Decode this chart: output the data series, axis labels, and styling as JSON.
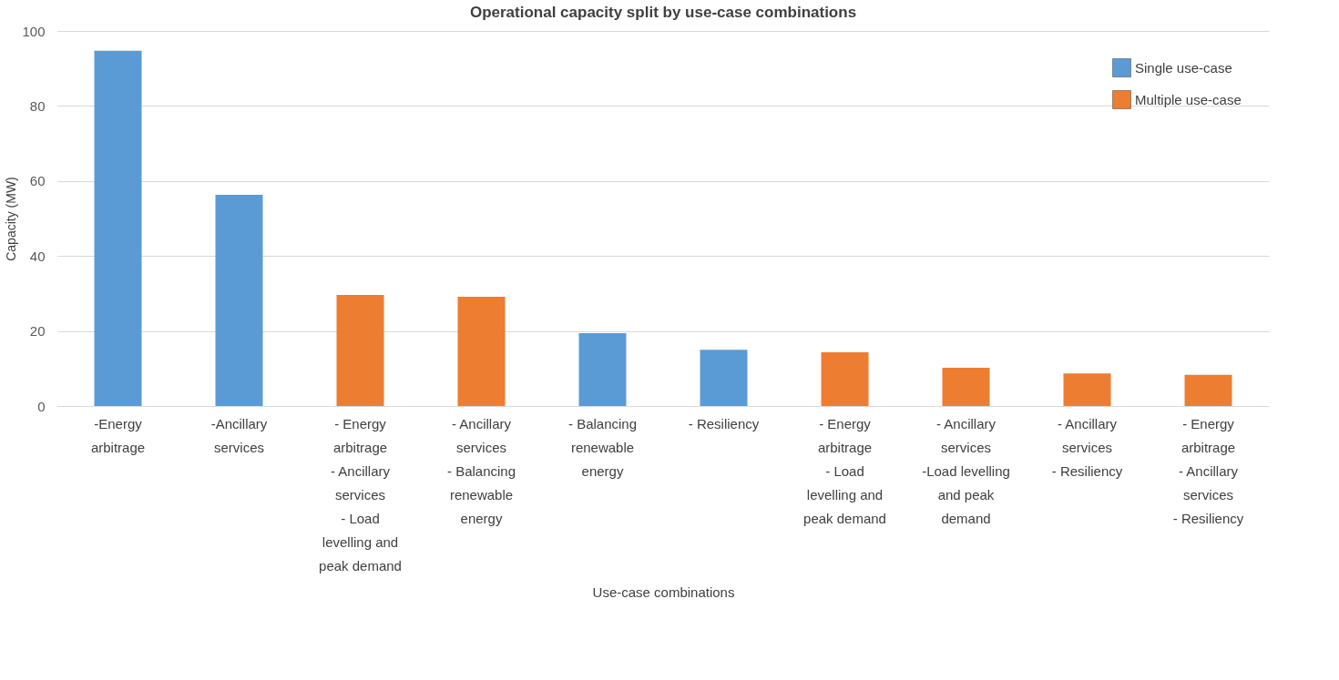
{
  "chart_data": {
    "type": "bar",
    "title": "Operational capacity split by use-case combinations",
    "xlabel": "Use-case combinations",
    "ylabel": "Capacity (MW)",
    "categories": [
      "-Energy\narbitrage",
      "-Ancillary\nservices",
      "- Energy\narbitrage\n- Ancillary\nservices\n- Load\nlevelling and\npeak demand",
      "- Ancillary\nservices\n- Balancing\nrenewable\nenergy",
      "- Balancing\nrenewable\nenergy",
      "- Resiliency",
      "- Energy\narbitrage\n- Load\nlevelling and\npeak demand",
      "- Ancillary\nservices\n-Load levelling\nand peak\ndemand",
      "- Ancillary\nservices\n- Resiliency",
      "- Energy\narbitrage\n- Ancillary\nservices\n- Resiliency"
    ],
    "series": [
      {
        "name": "Single use-case",
        "color": "#5b9bd5",
        "values": [
          94.7,
          56.3,
          null,
          null,
          19.4,
          15.0,
          null,
          null,
          null,
          null
        ]
      },
      {
        "name": "Multiple use-case",
        "color": "#ed7d31",
        "values": [
          null,
          null,
          29.6,
          29.1,
          null,
          null,
          14.3,
          10.2,
          8.7,
          8.3
        ]
      }
    ],
    "ylim": [
      0,
      100
    ],
    "yticks": [
      0,
      20,
      40,
      60,
      80,
      100
    ],
    "grid": "y",
    "legend": "top right"
  }
}
